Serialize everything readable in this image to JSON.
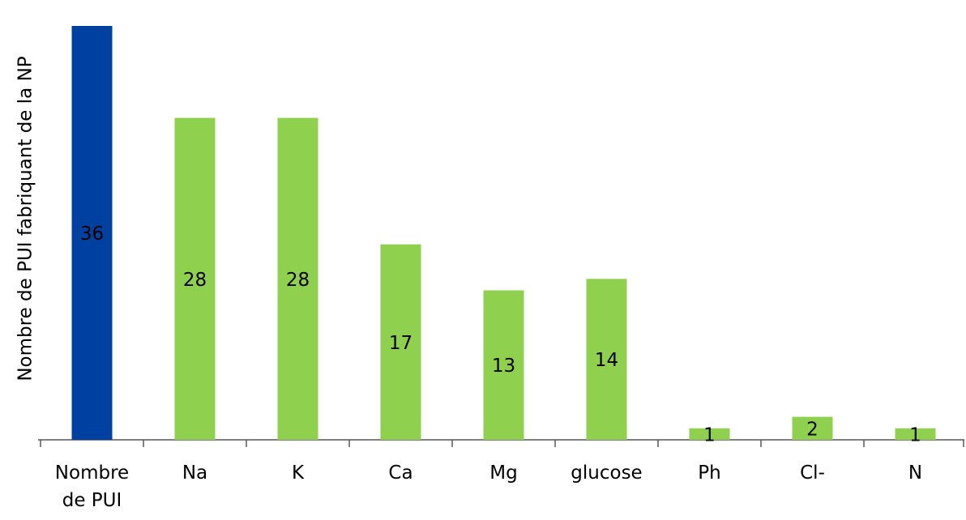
{
  "chart_data": {
    "type": "bar",
    "y_label": "Nombre de PUI fabriquant de la NP",
    "categories": [
      "Nombre de PUI",
      "Na",
      "K",
      "Ca",
      "Mg",
      "glucose",
      "Ph",
      "Cl-",
      "N"
    ],
    "values": [
      36,
      28,
      28,
      17,
      13,
      14,
      1,
      2,
      1
    ],
    "colors": [
      "#0040a0",
      "#8fd14f",
      "#8fd14f",
      "#8fd14f",
      "#8fd14f",
      "#8fd14f",
      "#8fd14f",
      "#8fd14f",
      "#8fd14f"
    ],
    "ylim": [
      0,
      36
    ],
    "grid": false
  }
}
